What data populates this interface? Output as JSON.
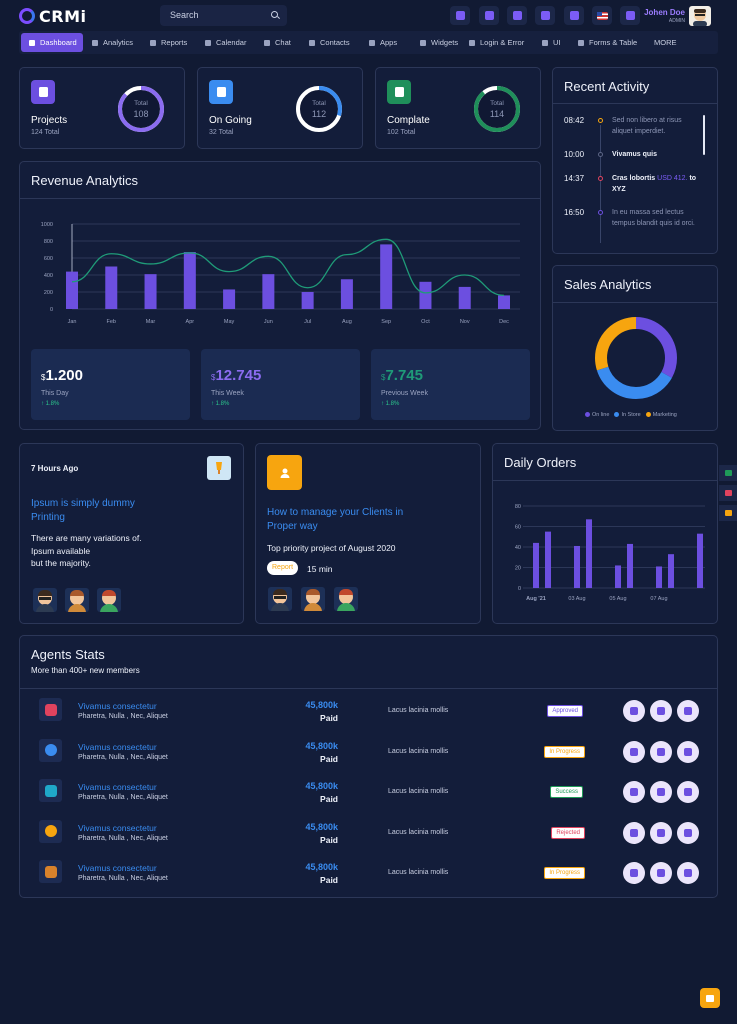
{
  "header": {
    "logo_text": "CRMi",
    "search_placeholder": "Search",
    "icons": [
      "triangle-icon",
      "grid-icon",
      "document-icon",
      "cart-icon",
      "chat-icon",
      "us-flag-icon",
      "fullscreen-icon"
    ],
    "user_name": "Johen Doe",
    "user_role": "ADMIN"
  },
  "nav": {
    "items": [
      {
        "label": "Dashboard",
        "icon": "dashboard-icon",
        "active": true
      },
      {
        "label": "Analytics",
        "icon": "analytics-icon"
      },
      {
        "label": "Reports",
        "icon": "reports-icon"
      },
      {
        "label": "Calendar",
        "icon": "calendar-icon"
      },
      {
        "label": "Chat",
        "icon": "chat-icon"
      },
      {
        "label": "Contacts",
        "icon": "contacts-icon"
      },
      {
        "label": "Apps",
        "icon": "apps-icon"
      },
      {
        "label": "Widgets",
        "icon": "widgets-icon"
      },
      {
        "label": "Login & Error",
        "icon": "login-icon"
      },
      {
        "label": "UI",
        "icon": "ui-icon"
      },
      {
        "label": "Forms & Table",
        "icon": "forms-icon"
      },
      {
        "label": "MORE",
        "icon": ""
      }
    ]
  },
  "stats": [
    {
      "title": "Projects",
      "sub": "124 Total",
      "ring_label": "Total",
      "ring_value": "108",
      "color": "#6c4fe0",
      "ring_color": "#8b6cf0",
      "progress": 0.87
    },
    {
      "title": "On Going",
      "sub": "32 Total",
      "ring_label": "Total",
      "ring_value": "112",
      "color": "#3a8cf0",
      "ring_color": "#3a8cf0",
      "progress": 0.3
    },
    {
      "title": "Complate",
      "sub": "102 Total",
      "ring_label": "Total",
      "ring_value": "114",
      "color": "#1f8f5a",
      "ring_color": "#1f8f5a",
      "progress": 0.89
    }
  ],
  "recent_activity": {
    "title": "Recent Activity",
    "items": [
      {
        "time": "08:42",
        "text": "Sed non libero at risus aliquet imperdiet.",
        "color": "#f7a50f"
      },
      {
        "time": "10:00",
        "bold": "Vivamus quis",
        "color": "#5c6585"
      },
      {
        "time": "14:37",
        "bold": "Cras lobortis",
        "highlight": "USD 412.",
        "rest": "to XYZ",
        "color": "#e0435e"
      },
      {
        "time": "16:50",
        "text": "In eu massa sed lectus tempus blandit quis id orci.",
        "color": "#6c4fe0"
      }
    ]
  },
  "revenue": {
    "title": "Revenue Analytics",
    "chart_data": {
      "type": "bar",
      "categories": [
        "Jan",
        "Feb",
        "Mar",
        "Apr",
        "May",
        "Jun",
        "Jul",
        "Aug",
        "Sep",
        "Oct",
        "Nov",
        "Dec"
      ],
      "series": [
        {
          "values": [
            440,
            500,
            410,
            670,
            230,
            410,
            200,
            350,
            760,
            320,
            260,
            160
          ]
        },
        {
          "values": [
            320,
            650,
            530,
            660,
            440,
            620,
            250,
            640,
            820,
            190,
            400,
            160
          ]
        }
      ],
      "ylim": [
        0,
        1000
      ],
      "yticks": [
        "0",
        "200",
        "400",
        "600",
        "800",
        "1000"
      ],
      "bar_color": "#6c4fe0",
      "line_color": "#1f9b78"
    },
    "cards": [
      {
        "currency": "$",
        "value": "1.200",
        "label": "This Day",
        "pct": "1.8%",
        "color": "#ffffff"
      },
      {
        "currency": "$",
        "value": "12.745",
        "label": "This Week",
        "pct": "1.8%",
        "color": "#8b6cf0"
      },
      {
        "currency": "$",
        "value": "7.745",
        "label": "Previous Week",
        "pct": "1.8%",
        "color": "#1f9b78"
      }
    ]
  },
  "sales": {
    "title": "Sales Analytics",
    "chart_data": {
      "type": "pie",
      "categories": [
        "On line",
        "In Store",
        "Marketing"
      ],
      "values": [
        33,
        37,
        30
      ],
      "colors": [
        "#6c4fe0",
        "#3a8cf0",
        "#f7a50f"
      ]
    }
  },
  "news": {
    "time": "7 Hours Ago",
    "title": "Ipsum is simply dummy Printing",
    "body": [
      "There are many variations of.",
      "Ipsum available",
      "but the majority."
    ]
  },
  "clients": {
    "title": "How to manage your Clients in Proper way",
    "sub": "Top priority project of August 2020",
    "tag": "Report",
    "duration": "15 min"
  },
  "daily_orders": {
    "title": "Daily Orders",
    "chart_data": {
      "type": "bar",
      "values": [
        44,
        55,
        41,
        67,
        22,
        43,
        21,
        33,
        53
      ],
      "pairs": [
        [
          44,
          55
        ],
        [
          41,
          67
        ],
        [
          22,
          43
        ],
        [
          21,
          33
        ],
        [
          53
        ]
      ],
      "x_labels": [
        "Aug '21",
        "03 Aug",
        "05 Aug",
        "07 Aug"
      ],
      "yticks": [
        "0",
        "20",
        "40",
        "60",
        "80"
      ],
      "ylim": [
        0,
        80
      ],
      "color": "#6c4fe0"
    }
  },
  "agents": {
    "title": "Agents Stats",
    "sub": "More than 400+ new members",
    "rows": [
      {
        "name": "Vivamus consectetur",
        "sub": "Pharetra, Nulla , Nec, Aliquet",
        "amount": "45,800k",
        "paid": "Paid",
        "desc": "Lacus lacinia mollis",
        "status": "Approved",
        "status_color": "#6c4fe0",
        "logo_color": "#e0435e"
      },
      {
        "name": "Vivamus consectetur",
        "sub": "Pharetra, Nulla , Nec, Aliquet",
        "amount": "45,800k",
        "paid": "Paid",
        "desc": "Lacus lacinia mollis",
        "status": "In Progress",
        "status_color": "#f7a50f",
        "logo_color": "#3a8cf0"
      },
      {
        "name": "Vivamus consectetur",
        "sub": "Pharetra, Nulla , Nec, Aliquet",
        "amount": "45,800k",
        "paid": "Paid",
        "desc": "Lacus lacinia mollis",
        "status": "Success",
        "status_color": "#1f9b58",
        "logo_color": "#1fa8c9"
      },
      {
        "name": "Vivamus consectetur",
        "sub": "Pharetra, Nulla , Nec, Aliquet",
        "amount": "45,800k",
        "paid": "Paid",
        "desc": "Lacus lacinia mollis",
        "status": "Rejected",
        "status_color": "#e0435e",
        "logo_color": "#f7a50f"
      },
      {
        "name": "Vivamus consectetur",
        "sub": "Pharetra, Nulla , Nec, Aliquet",
        "amount": "45,800k",
        "paid": "Paid",
        "desc": "Lacus lacinia mollis",
        "status": "In Progress",
        "status_color": "#f7a50f",
        "logo_color": "#d9822b"
      }
    ]
  }
}
